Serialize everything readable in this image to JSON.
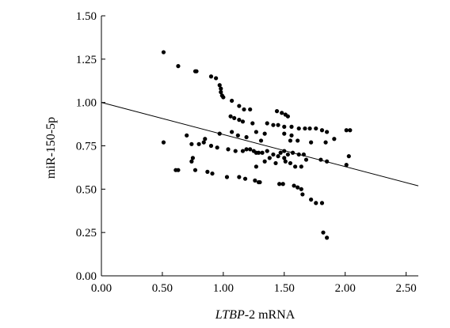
{
  "chart_data": {
    "type": "scatter",
    "xlabel_italic": "LTBP",
    "xlabel_rest": "-2 mRNA",
    "ylabel": "miR-150-5p",
    "xlim": [
      0,
      2.6
    ],
    "ylim": [
      0,
      1.5
    ],
    "x_ticks": [
      "0.00",
      "0.50",
      "1.00",
      "1.50",
      "2.00",
      "2.50"
    ],
    "y_ticks": [
      "0.00",
      "0.25",
      "0.50",
      "0.75",
      "1.00",
      "1.25",
      "1.50"
    ],
    "grid": false,
    "legend": "none",
    "trend_line": {
      "intercept": 1.0,
      "slope": -0.185
    },
    "points": [
      [
        0.51,
        1.29
      ],
      [
        0.63,
        1.21
      ],
      [
        0.77,
        1.18
      ],
      [
        0.78,
        1.18
      ],
      [
        0.9,
        1.15
      ],
      [
        0.94,
        1.14
      ],
      [
        0.97,
        1.1
      ],
      [
        0.98,
        1.08
      ],
      [
        0.98,
        1.06
      ],
      [
        0.99,
        1.04
      ],
      [
        1.0,
        1.03
      ],
      [
        1.07,
        1.01
      ],
      [
        1.13,
        0.98
      ],
      [
        1.17,
        0.96
      ],
      [
        1.22,
        0.96
      ],
      [
        1.44,
        0.95
      ],
      [
        1.48,
        0.94
      ],
      [
        1.51,
        0.93
      ],
      [
        1.53,
        0.92
      ],
      [
        1.06,
        0.92
      ],
      [
        1.09,
        0.91
      ],
      [
        1.13,
        0.9
      ],
      [
        1.16,
        0.89
      ],
      [
        1.24,
        0.88
      ],
      [
        1.36,
        0.88
      ],
      [
        1.41,
        0.87
      ],
      [
        1.45,
        0.87
      ],
      [
        1.5,
        0.86
      ],
      [
        1.56,
        0.86
      ],
      [
        1.62,
        0.85
      ],
      [
        1.67,
        0.85
      ],
      [
        1.71,
        0.85
      ],
      [
        1.76,
        0.85
      ],
      [
        1.81,
        0.84
      ],
      [
        1.85,
        0.83
      ],
      [
        1.91,
        0.79
      ],
      [
        2.01,
        0.84
      ],
      [
        2.04,
        0.84
      ],
      [
        1.27,
        0.83
      ],
      [
        1.34,
        0.82
      ],
      [
        1.5,
        0.82
      ],
      [
        1.56,
        0.81
      ],
      [
        1.07,
        0.83
      ],
      [
        0.97,
        0.82
      ],
      [
        1.12,
        0.81
      ],
      [
        1.19,
        0.8
      ],
      [
        0.7,
        0.81
      ],
      [
        0.85,
        0.79
      ],
      [
        1.31,
        0.78
      ],
      [
        1.55,
        0.78
      ],
      [
        1.61,
        0.78
      ],
      [
        1.72,
        0.77
      ],
      [
        1.84,
        0.77
      ],
      [
        0.74,
        0.76
      ],
      [
        0.8,
        0.76
      ],
      [
        0.84,
        0.77
      ],
      [
        0.9,
        0.75
      ],
      [
        0.95,
        0.74
      ],
      [
        1.04,
        0.73
      ],
      [
        1.1,
        0.72
      ],
      [
        1.16,
        0.72
      ],
      [
        1.19,
        0.73
      ],
      [
        1.22,
        0.73
      ],
      [
        1.25,
        0.72
      ],
      [
        1.27,
        0.71
      ],
      [
        1.29,
        0.71
      ],
      [
        1.32,
        0.71
      ],
      [
        1.36,
        0.72
      ],
      [
        1.41,
        0.7
      ],
      [
        1.47,
        0.71
      ],
      [
        1.5,
        0.72
      ],
      [
        1.53,
        0.7
      ],
      [
        1.57,
        0.71
      ],
      [
        1.62,
        0.7
      ],
      [
        1.66,
        0.7
      ],
      [
        1.5,
        0.68
      ],
      [
        1.45,
        0.69
      ],
      [
        1.38,
        0.68
      ],
      [
        1.34,
        0.66
      ],
      [
        1.43,
        0.65
      ],
      [
        1.51,
        0.66
      ],
      [
        1.55,
        0.65
      ],
      [
        1.59,
        0.63
      ],
      [
        1.64,
        0.63
      ],
      [
        1.68,
        0.67
      ],
      [
        1.8,
        0.67
      ],
      [
        1.85,
        0.66
      ],
      [
        1.27,
        0.63
      ],
      [
        0.51,
        0.77
      ],
      [
        0.74,
        0.66
      ],
      [
        0.75,
        0.68
      ],
      [
        0.77,
        0.61
      ],
      [
        0.87,
        0.6
      ],
      [
        0.91,
        0.59
      ],
      [
        0.61,
        0.61
      ],
      [
        0.63,
        0.61
      ],
      [
        1.03,
        0.57
      ],
      [
        1.13,
        0.57
      ],
      [
        1.18,
        0.56
      ],
      [
        1.26,
        0.55
      ],
      [
        1.29,
        0.54
      ],
      [
        1.3,
        0.54
      ],
      [
        1.46,
        0.53
      ],
      [
        1.49,
        0.53
      ],
      [
        1.58,
        0.52
      ],
      [
        1.61,
        0.51
      ],
      [
        1.64,
        0.5
      ],
      [
        1.65,
        0.47
      ],
      [
        1.72,
        0.44
      ],
      [
        1.76,
        0.42
      ],
      [
        1.81,
        0.42
      ],
      [
        2.01,
        0.64
      ],
      [
        2.03,
        0.69
      ],
      [
        1.82,
        0.25
      ],
      [
        1.85,
        0.22
      ]
    ]
  }
}
